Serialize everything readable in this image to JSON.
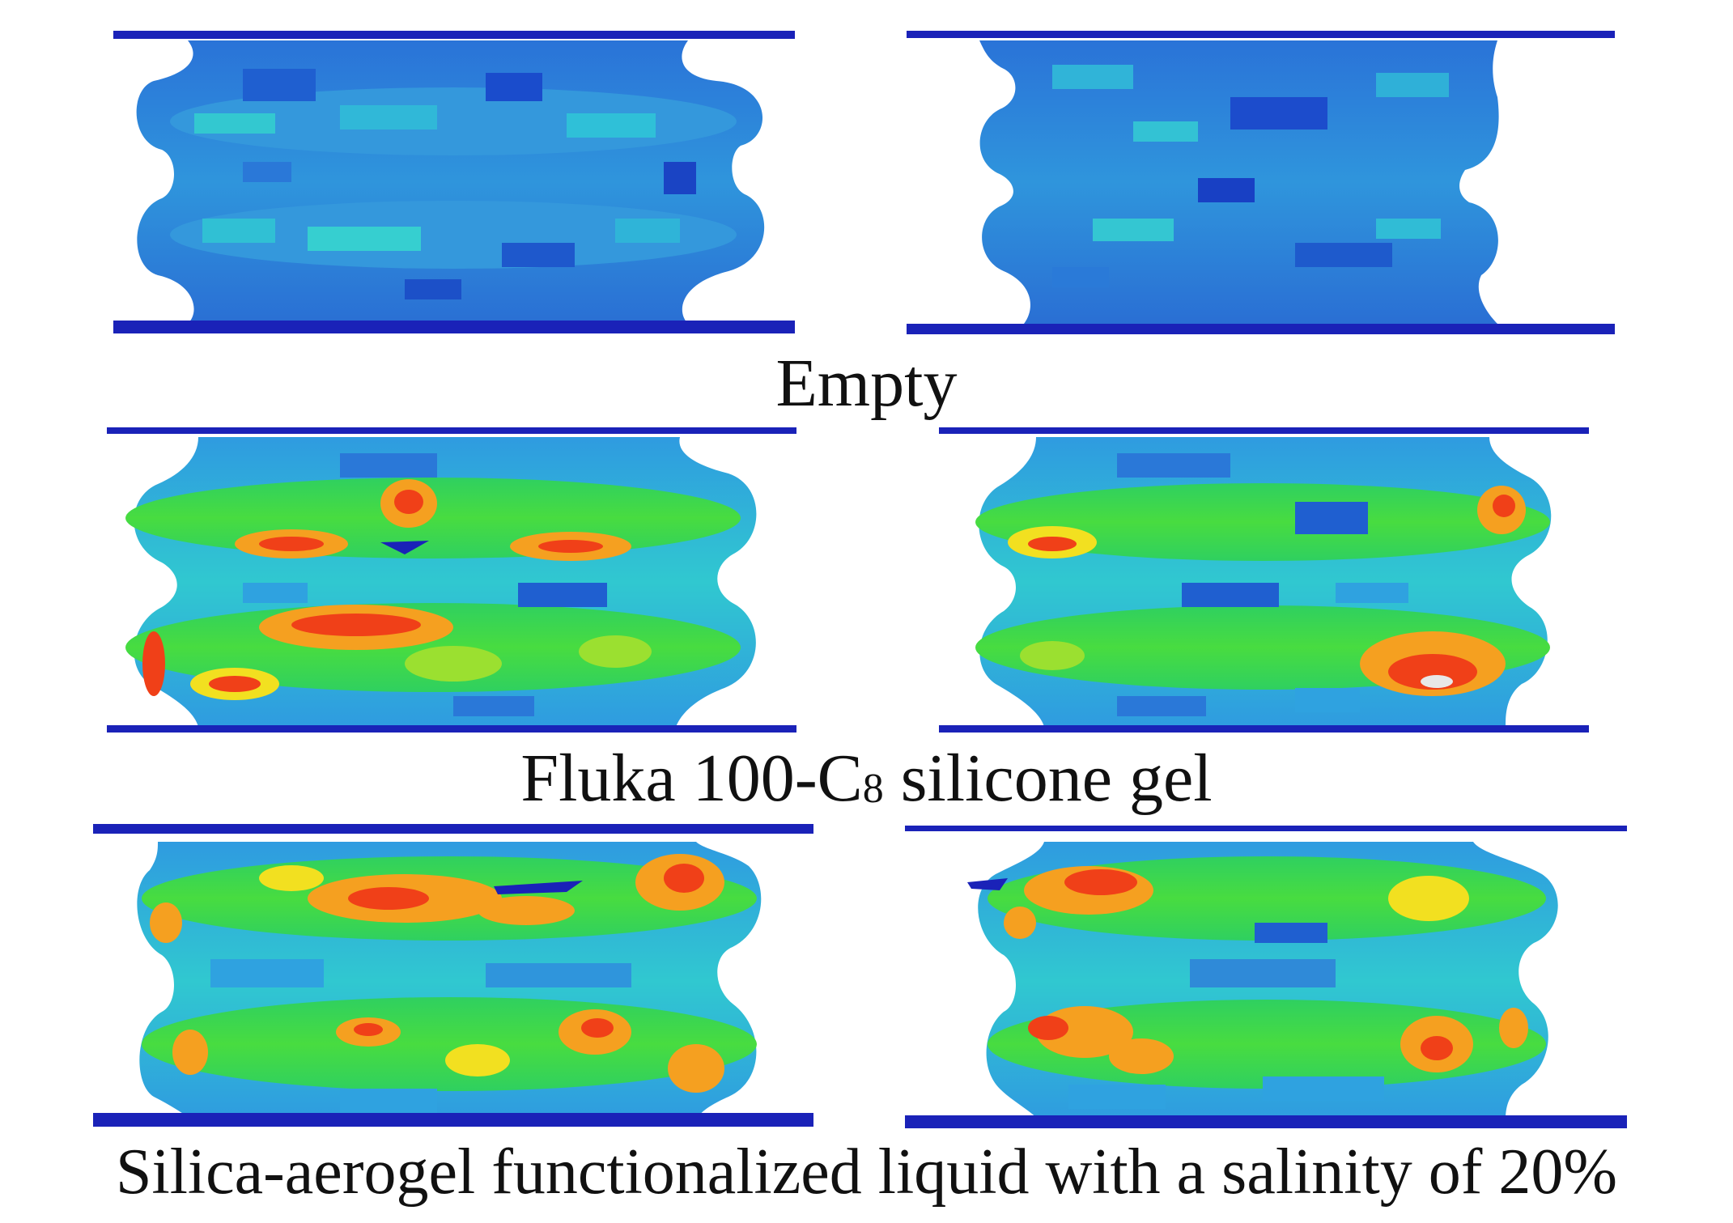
{
  "panels": [
    {
      "caption": "Empty",
      "caption_parts": {
        "pre": "Empty",
        "sub": "",
        "post": ""
      },
      "stress_level": "low",
      "models": [
        "left",
        "right"
      ]
    },
    {
      "caption": "Fluka 100-C8 silicone gel",
      "caption_parts": {
        "pre": "Fluka 100-C",
        "sub": "8",
        "post": " silicone gel"
      },
      "stress_level": "high",
      "models": [
        "left",
        "right"
      ]
    },
    {
      "caption": "Silica-aerogel functionalized liquid with a salinity of 20%",
      "caption_parts": {
        "pre": "Silica-aerogel functionalized liquid with a salinity of 20%",
        "sub": "",
        "post": ""
      },
      "stress_level": "high",
      "models": [
        "left",
        "right"
      ]
    }
  ],
  "colors": {
    "plate": "#1a22b8",
    "contour_scale": [
      "#1238c8",
      "#1f6fd8",
      "#2fa2e0",
      "#30d0c8",
      "#2fd860",
      "#9be030",
      "#f2e020",
      "#f5a020",
      "#f04018",
      "#e8e8e8"
    ]
  }
}
